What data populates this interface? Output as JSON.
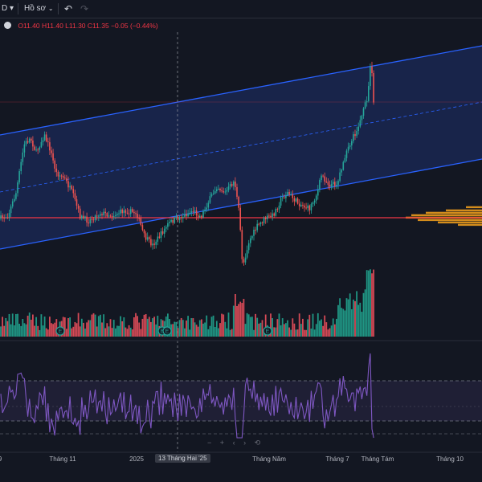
{
  "toolbar": {
    "interval_label": "D",
    "compare_label": "Hồ sơ",
    "undo_icon": "undo-icon",
    "redo_icon": "redo-icon",
    "chevron_icon": "chevron-down-icon"
  },
  "legend": {
    "o": "O11.40",
    "h": "H11.40",
    "l": "L11.30",
    "c": "C11.35",
    "change": "−0.05 (−0.44%)"
  },
  "scroll_controls": [
    "−",
    "+",
    "‹",
    "›",
    "⟲"
  ],
  "crosshair_date": "13 Tháng Hai '25",
  "colors": {
    "up": "#26a69a",
    "down": "#ef5350",
    "channel_line": "#2962ff",
    "channel_fill": "#1e2f6b",
    "poc_line": "#f23645",
    "rsi_line": "#7e57c2",
    "profile_orange": "#f7a21b",
    "volume_up": "#22ab94",
    "volume_down": "#f7525f",
    "earnings_marker": "#26a69a"
  },
  "chart_data": {
    "type": "candlestick",
    "xaxis_ticks": [
      "Tháng 11",
      "2025",
      "3",
      "Tháng Năm",
      "Tháng 7",
      "Tháng Tám",
      "Tháng 10"
    ],
    "xaxis_left_partial": "9",
    "earnings_markers": [
      "E",
      "E",
      "E",
      "E"
    ],
    "last_ohlc": {
      "open": 11.4,
      "high": 11.4,
      "low": 11.3,
      "close": 11.35
    },
    "indicator": "RSI",
    "grid": true
  }
}
